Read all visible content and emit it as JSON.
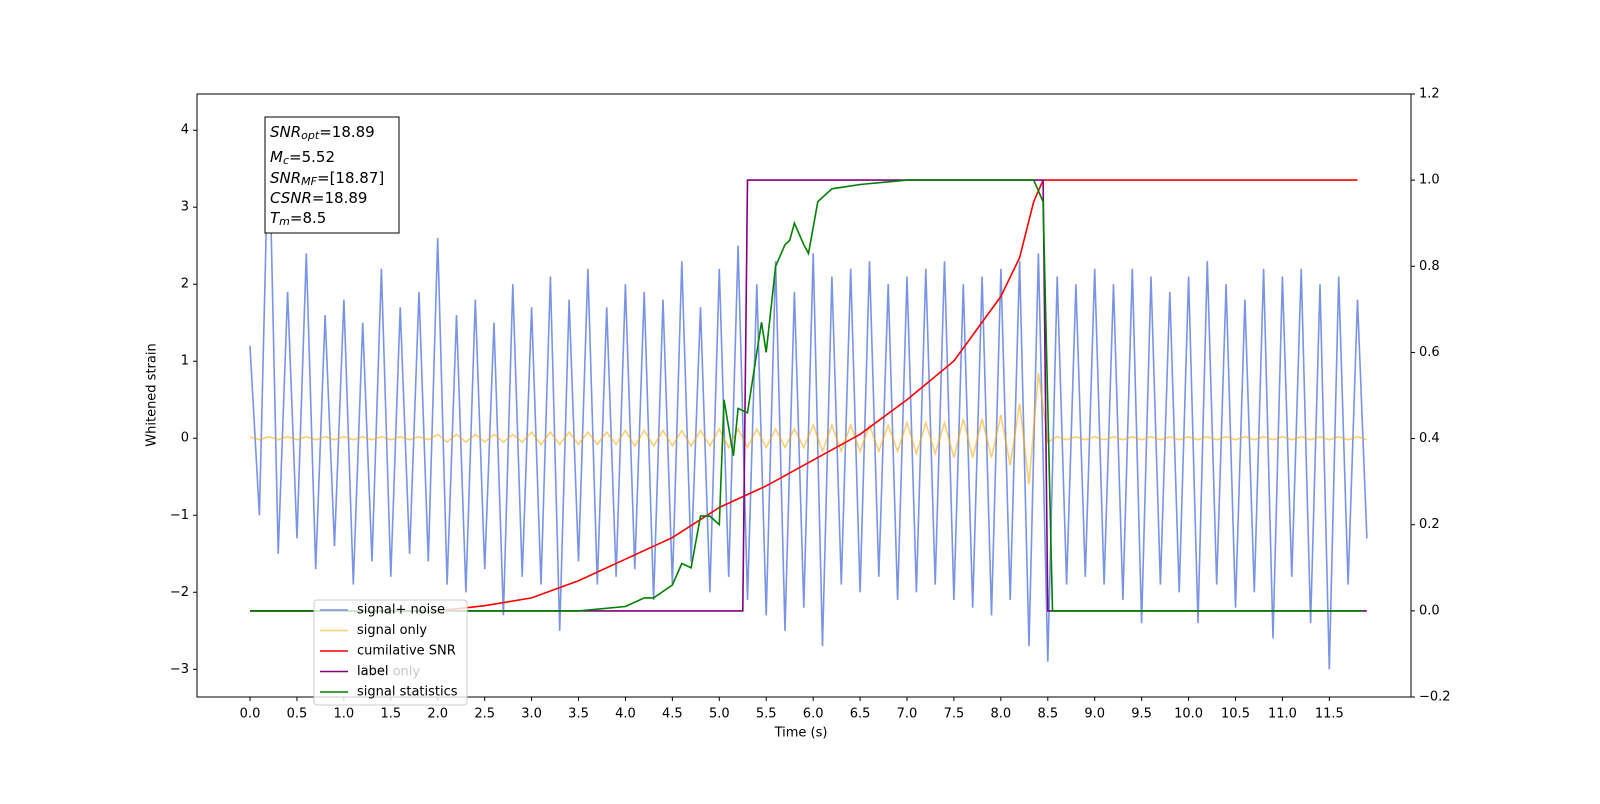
{
  "chart_data": {
    "type": "line",
    "xlabel": "Time (s)",
    "ylabel": "Whitened strain",
    "xlim": [
      -0.565,
      12.37
    ],
    "ylim": [
      -3.36,
      4.47
    ],
    "y2lim": [
      -0.2,
      1.2
    ],
    "xticks": [
      {
        "value": 0,
        "label": "0.0"
      },
      0.5,
      {
        "value": 1,
        "label": "1.0"
      },
      1.5,
      {
        "value": 2,
        "label": "2.0"
      },
      2.5,
      {
        "value": 3,
        "label": "3.0"
      },
      3.5,
      {
        "value": 4,
        "label": "4.0"
      },
      4.5,
      {
        "value": 5,
        "label": "5.0"
      },
      5.5,
      {
        "value": 6,
        "label": "6.0"
      },
      6.5,
      {
        "value": 7,
        "label": "7.0"
      },
      7.5,
      {
        "value": 8,
        "label": "8.0"
      },
      8.5,
      {
        "value": 9,
        "label": "9.0"
      },
      9.5,
      {
        "value": 10,
        "label": "10.0"
      },
      10.5,
      {
        "value": 11,
        "label": "11.0"
      },
      11.5
    ],
    "yticks": [
      {
        "value": -3,
        "label": "−3"
      },
      {
        "value": -2,
        "label": "−2"
      },
      {
        "value": -1,
        "label": "−1"
      },
      0,
      1,
      2,
      3,
      4
    ],
    "y2ticks": [
      {
        "value": -0.2,
        "label": "−0.2"
      },
      {
        "value": 0,
        "label": "0.0"
      },
      0.2,
      0.4,
      0.6,
      0.8,
      {
        "value": 1,
        "label": "1.0"
      },
      1.2
    ],
    "x": [
      0,
      0.1,
      0.2,
      0.3,
      0.4,
      0.5,
      0.6,
      0.7,
      0.8,
      0.9,
      1,
      1.1,
      1.2,
      1.3,
      1.4,
      1.5,
      1.6,
      1.7,
      1.8,
      1.9,
      2,
      2.1,
      2.2,
      2.3,
      2.4,
      2.5,
      2.6,
      2.7,
      2.8,
      2.9,
      3,
      3.1,
      3.2,
      3.3,
      3.4,
      3.5,
      3.6,
      3.7,
      3.8,
      3.9,
      4,
      4.1,
      4.2,
      4.3,
      4.4,
      4.5,
      4.6,
      4.7,
      4.8,
      4.9,
      5,
      5.1,
      5.2,
      5.3,
      5.4,
      5.5,
      5.6,
      5.7,
      5.8,
      5.9,
      6,
      6.1,
      6.2,
      6.3,
      6.4,
      6.5,
      6.6,
      6.7,
      6.8,
      6.9,
      7,
      7.1,
      7.2,
      7.3,
      7.4,
      7.5,
      7.6,
      7.7,
      7.8,
      7.9,
      8,
      8.1,
      8.2,
      8.3,
      8.4,
      8.5,
      8.6,
      8.7,
      8.8,
      8.9,
      9,
      9.1,
      9.2,
      9.3,
      9.4,
      9.5,
      9.6,
      9.7,
      9.8,
      9.9,
      10,
      10.1,
      10.2,
      10.3,
      10.4,
      10.5,
      10.6,
      10.7,
      10.8,
      10.9,
      11,
      11.1,
      11.2,
      11.3,
      11.4,
      11.5,
      11.6,
      11.7,
      11.8,
      11.9
    ],
    "series": [
      {
        "name": "signal+ noise",
        "color": "#6a88e4",
        "alpha": 0.9,
        "values": [
          1.2,
          -1.0,
          4.1,
          -1.5,
          1.9,
          -1.3,
          2.4,
          -1.7,
          1.6,
          -1.4,
          1.8,
          -1.9,
          1.5,
          -1.6,
          2.2,
          -1.8,
          1.7,
          -1.5,
          1.9,
          -1.6,
          2.6,
          -1.9,
          1.6,
          -2.0,
          1.8,
          -1.7,
          1.5,
          -2.3,
          2.0,
          -1.8,
          1.7,
          -1.9,
          2.1,
          -2.5,
          1.8,
          -1.6,
          2.2,
          -1.9,
          1.7,
          -1.8,
          2.0,
          -1.7,
          1.9,
          -2.1,
          1.8,
          -1.9,
          2.3,
          -1.6,
          1.7,
          -2.0,
          2.2,
          -1.8,
          2.5,
          -2.1,
          2.0,
          -2.3,
          2.3,
          -2.5,
          1.9,
          -2.2,
          2.4,
          -2.7,
          2.1,
          -1.9,
          2.2,
          -2.0,
          2.3,
          -1.8,
          2.0,
          -2.1,
          2.1,
          -2.0,
          2.2,
          -1.9,
          2.3,
          -2.1,
          2.0,
          -2.2,
          2.1,
          -2.3,
          2.2,
          -2.1,
          2.3,
          -2.7,
          2.4,
          -2.9,
          2.1,
          -1.9,
          2.0,
          -1.8,
          2.2,
          -1.9,
          2.0,
          -2.1,
          2.2,
          -2.4,
          2.1,
          -1.9,
          1.9,
          -2.0,
          2.1,
          -2.4,
          2.3,
          -1.9,
          2.0,
          -2.2,
          1.8,
          -2.0,
          2.2,
          -2.6,
          2.1,
          -1.8,
          2.2,
          -2.4,
          2.0,
          -3.0,
          2.1,
          -1.9,
          1.8,
          -1.3
        ]
      },
      {
        "name": "signal only",
        "color": "orange",
        "alpha": 0.55,
        "values": [
          0.02,
          -0.02,
          0.02,
          -0.02,
          0.02,
          -0.02,
          0.02,
          -0.02,
          0.02,
          -0.02,
          0.02,
          -0.02,
          0.02,
          -0.02,
          0.02,
          -0.02,
          0.02,
          -0.02,
          0.02,
          -0.02,
          0.05,
          -0.05,
          0.05,
          -0.05,
          0.05,
          -0.05,
          0.05,
          -0.05,
          0.05,
          -0.05,
          0.08,
          -0.08,
          0.08,
          -0.08,
          0.08,
          -0.08,
          0.08,
          -0.08,
          0.08,
          -0.08,
          0.1,
          -0.1,
          0.1,
          -0.1,
          0.1,
          -0.1,
          0.1,
          -0.1,
          0.1,
          -0.1,
          0.12,
          -0.12,
          0.12,
          -0.12,
          0.12,
          -0.12,
          0.12,
          -0.12,
          0.12,
          -0.12,
          0.17,
          -0.17,
          0.17,
          -0.17,
          0.17,
          -0.17,
          0.17,
          -0.17,
          0.17,
          -0.17,
          0.2,
          -0.2,
          0.2,
          -0.2,
          0.2,
          -0.25,
          0.25,
          -0.25,
          0.25,
          -0.25,
          0.3,
          -0.35,
          0.45,
          -0.6,
          0.85,
          -0.05,
          0.02,
          -0.02,
          0.02,
          -0.02,
          0.02,
          -0.02,
          0.02,
          -0.02,
          0.02,
          -0.02,
          0.02,
          -0.02,
          0.02,
          -0.02,
          0.02,
          -0.02,
          0.02,
          -0.02,
          0.02,
          -0.02,
          0.02,
          -0.02,
          0.02,
          -0.02,
          0.02,
          -0.02,
          0.02,
          -0.02,
          0.02,
          -0.02,
          0.02,
          -0.02,
          0.02,
          -0.02
        ]
      },
      {
        "name": "cumilative SNR",
        "color": "red",
        "axis": "y2",
        "x": [
          0,
          1,
          2,
          2.5,
          3,
          3.5,
          4,
          4.5,
          5,
          5.5,
          6,
          6.5,
          7,
          7.5,
          8,
          8.2,
          8.35,
          8.45,
          11.8
        ],
        "values": [
          0,
          0,
          0,
          0.012,
          0.03,
          0.07,
          0.12,
          0.17,
          0.24,
          0.29,
          0.35,
          0.41,
          0.49,
          0.58,
          0.73,
          0.82,
          0.95,
          1.0,
          1.0
        ]
      },
      {
        "name": "label",
        "color": "purple",
        "axis": "y2",
        "x": [
          0,
          5.25,
          5.3,
          8.45,
          8.5,
          11.9
        ],
        "values": [
          0,
          0,
          1,
          1,
          0,
          0
        ]
      },
      {
        "name": "signal statistics",
        "color": "green",
        "axis": "y2",
        "x": [
          0,
          3.5,
          4.0,
          4.2,
          4.3,
          4.5,
          4.6,
          4.7,
          4.8,
          4.9,
          5.0,
          5.05,
          5.15,
          5.2,
          5.3,
          5.45,
          5.5,
          5.6,
          5.7,
          5.75,
          5.8,
          5.9,
          5.95,
          6.05,
          6.2,
          6.5,
          7.0,
          8.35,
          8.45,
          8.55,
          11.85
        ],
        "values": [
          0,
          0,
          0.01,
          0.03,
          0.03,
          0.06,
          0.11,
          0.1,
          0.22,
          0.22,
          0.2,
          0.49,
          0.36,
          0.47,
          0.46,
          0.67,
          0.6,
          0.8,
          0.85,
          0.86,
          0.9,
          0.85,
          0.83,
          0.95,
          0.98,
          0.99,
          1.0,
          1.0,
          0.95,
          0.0,
          0.0
        ]
      }
    ],
    "legend_extra": "label only",
    "legend": "lower left",
    "annotation": [
      {
        "symbol": "SNR",
        "sub": "opt",
        "text": "=18.89"
      },
      {
        "symbol": "M",
        "sub": "c",
        "text": "=5.52"
      },
      {
        "symbol": "SNR",
        "sub": "MF",
        "text": "=[18.87]"
      },
      {
        "symbol": "CSNR",
        "text": "=18.89"
      },
      {
        "symbol": "T",
        "sub": "m",
        "text": "=8.5"
      }
    ]
  }
}
